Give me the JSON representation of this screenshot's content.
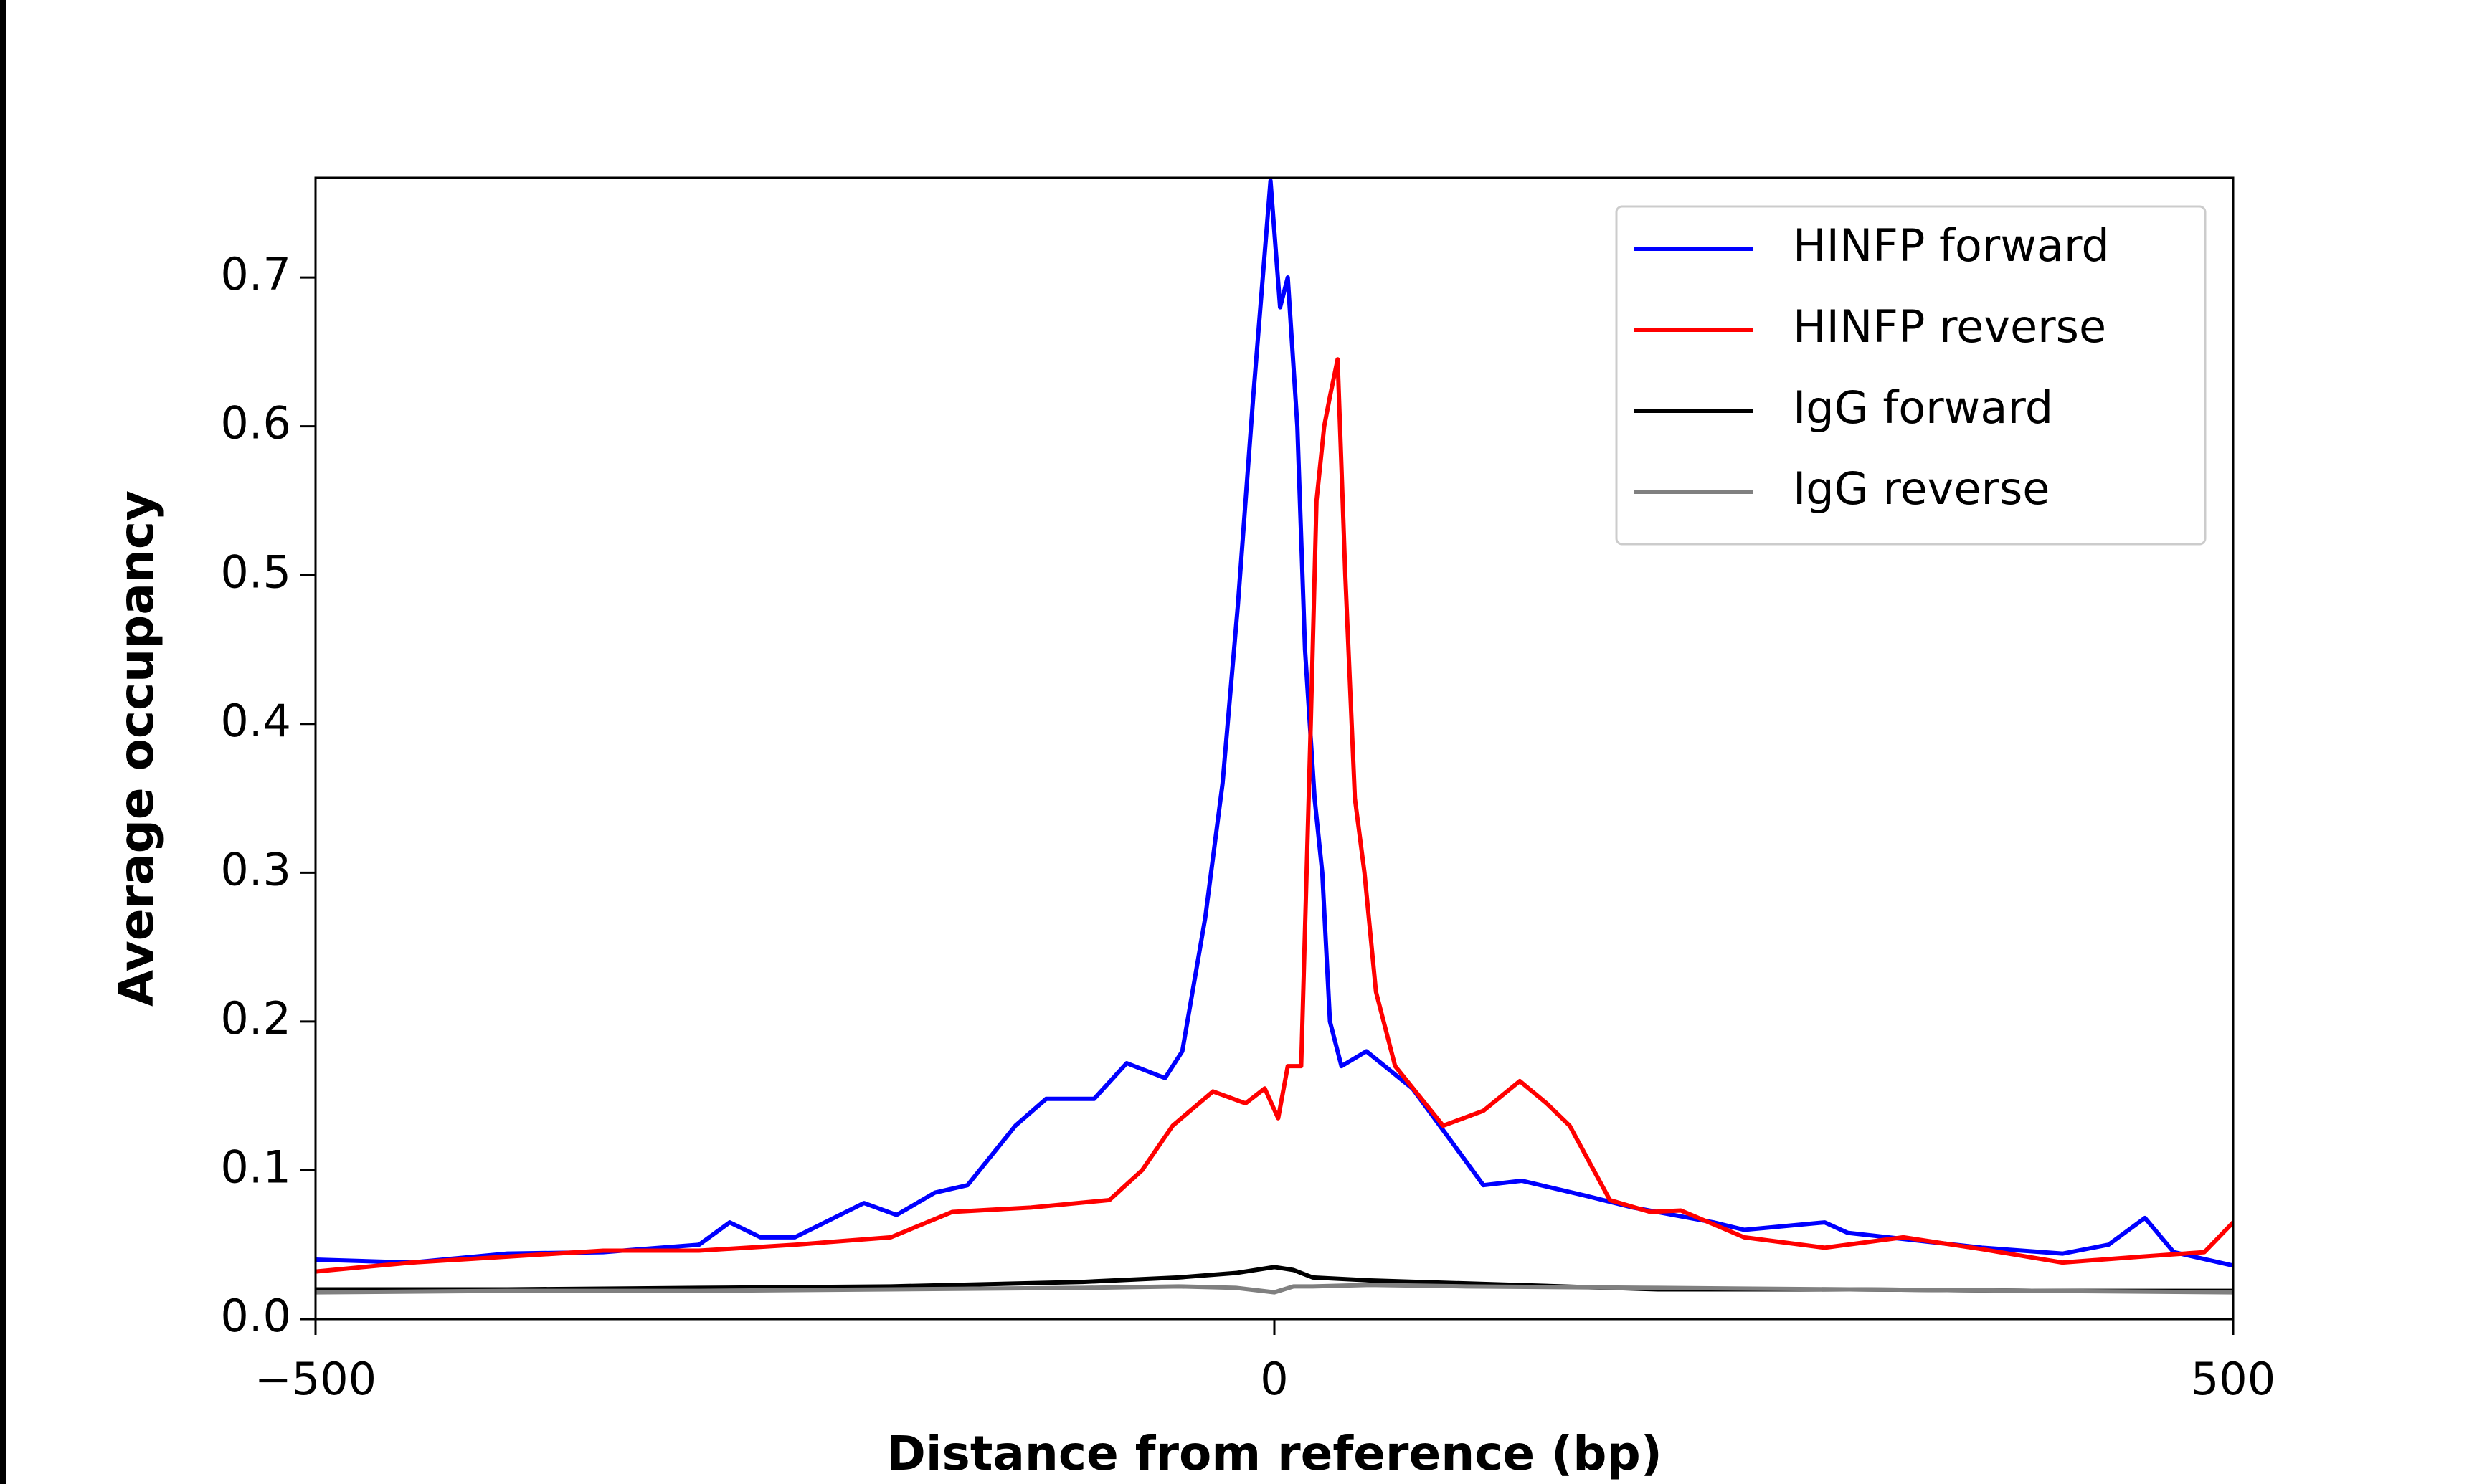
{
  "chart_data": {
    "type": "line",
    "xlabel": "Distance from reference (bp)",
    "ylabel": "Average occupancy",
    "xlim": [
      -500,
      500
    ],
    "ylim": [
      0,
      0.767
    ],
    "xticks": [
      {
        "value": -500,
        "label": "−500"
      },
      0,
      500
    ],
    "yticks": [
      {
        "value": 0,
        "label": "0.0"
      },
      0.1,
      0.2,
      0.3,
      0.4,
      0.5,
      0.6,
      0.7
    ],
    "legend": "upper right",
    "series": [
      {
        "name": "HINFP forward",
        "color": "#0000ff",
        "x": [
          -500,
          -450,
          -400,
          -350,
          -300,
          -284,
          -268,
          -250,
          -214,
          -197,
          -177,
          -160,
          -135,
          -119,
          -94,
          -77,
          -57,
          -48,
          -36,
          -27,
          -19,
          -11,
          -2,
          3,
          7,
          12,
          16,
          21,
          25,
          29,
          35,
          48,
          72,
          92,
          109,
          129,
          162,
          187,
          229,
          245,
          287,
          299,
          369,
          411,
          435,
          454,
          469,
          500
        ],
        "values": [
          0.04,
          0.038,
          0.044,
          0.045,
          0.05,
          0.065,
          0.055,
          0.055,
          0.078,
          0.07,
          0.085,
          0.09,
          0.13,
          0.148,
          0.148,
          0.172,
          0.162,
          0.18,
          0.27,
          0.36,
          0.48,
          0.62,
          0.765,
          0.68,
          0.7,
          0.6,
          0.45,
          0.35,
          0.3,
          0.2,
          0.17,
          0.18,
          0.155,
          0.12,
          0.09,
          0.093,
          0.083,
          0.075,
          0.065,
          0.06,
          0.065,
          0.058,
          0.048,
          0.044,
          0.05,
          0.068,
          0.045,
          0.036
        ]
      },
      {
        "name": "HINFP reverse",
        "color": "#ff0000",
        "x": [
          -500,
          -450,
          -400,
          -350,
          -300,
          -250,
          -200,
          -168,
          -127,
          -86,
          -69,
          -53,
          -32,
          -15,
          -5,
          2,
          7,
          14,
          19,
          22,
          26,
          29,
          33,
          37,
          42,
          47,
          53,
          63,
          88,
          109,
          128,
          142,
          154,
          175,
          196,
          212,
          245,
          287,
          328,
          369,
          411,
          452,
          485,
          500
        ],
        "values": [
          0.032,
          0.038,
          0.042,
          0.046,
          0.046,
          0.05,
          0.055,
          0.072,
          0.075,
          0.08,
          0.1,
          0.13,
          0.153,
          0.145,
          0.155,
          0.135,
          0.17,
          0.17,
          0.4,
          0.55,
          0.6,
          0.62,
          0.645,
          0.5,
          0.35,
          0.3,
          0.22,
          0.17,
          0.13,
          0.14,
          0.16,
          0.145,
          0.13,
          0.08,
          0.072,
          0.073,
          0.055,
          0.048,
          0.055,
          0.047,
          0.038,
          0.042,
          0.045,
          0.065
        ]
      },
      {
        "name": "IgG forward",
        "color": "#000000",
        "x": [
          -500,
          -400,
          -300,
          -200,
          -100,
          -50,
          -20,
          0,
          10,
          20,
          50,
          100,
          200,
          300,
          400,
          500
        ],
        "values": [
          0.02,
          0.02,
          0.021,
          0.022,
          0.025,
          0.028,
          0.031,
          0.035,
          0.033,
          0.028,
          0.026,
          0.024,
          0.02,
          0.02,
          0.019,
          0.019
        ]
      },
      {
        "name": "IgG reverse",
        "color": "#808080",
        "x": [
          -500,
          -400,
          -300,
          -200,
          -100,
          -50,
          -20,
          0,
          10,
          20,
          50,
          100,
          200,
          300,
          400,
          500
        ],
        "values": [
          0.018,
          0.019,
          0.019,
          0.02,
          0.021,
          0.022,
          0.021,
          0.018,
          0.022,
          0.022,
          0.023,
          0.022,
          0.021,
          0.02,
          0.019,
          0.018
        ]
      }
    ]
  }
}
